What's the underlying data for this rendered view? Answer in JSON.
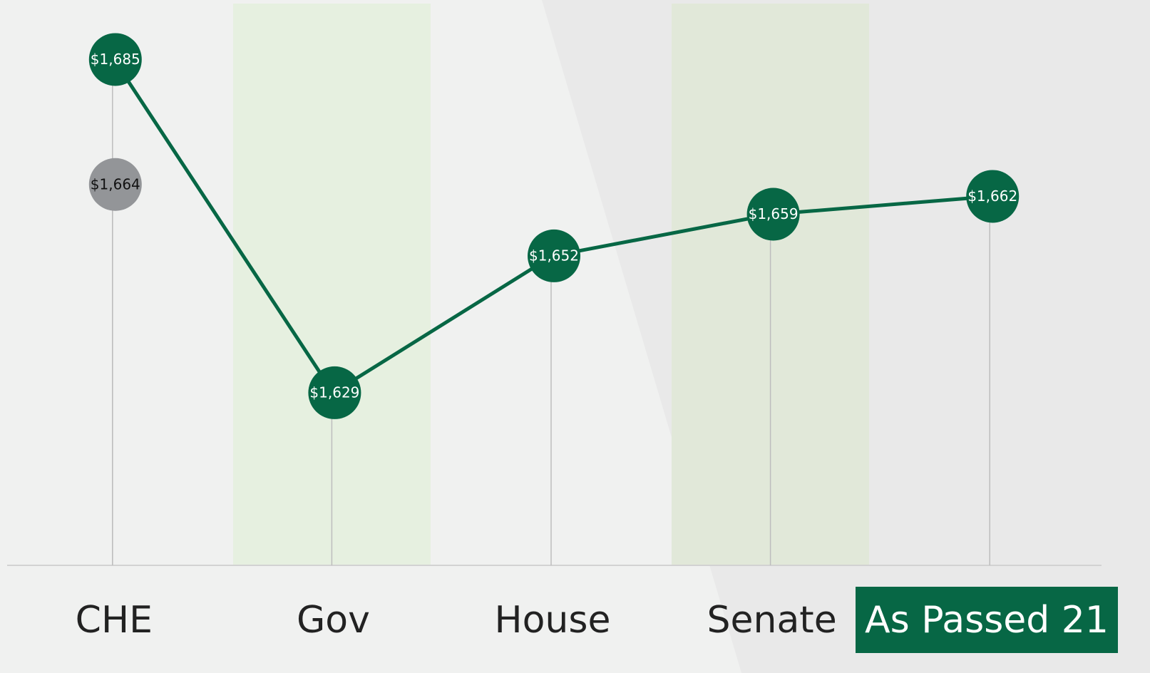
{
  "chart_data": {
    "type": "line",
    "categories": [
      "CHE",
      "Gov",
      "House",
      "Senate",
      "As Passed 21"
    ],
    "series": [
      {
        "color": "#076745",
        "values": [
          1685,
          1629,
          1652,
          1659,
          1662
        ],
        "value_labels": [
          "$1,685",
          "$1,629",
          "$1,652",
          "$1,659",
          "$1,662"
        ]
      },
      {
        "color": "#939598",
        "values": [
          1664,
          null,
          null,
          null,
          null
        ],
        "value_labels": [
          "$1,664",
          null,
          null,
          null,
          null
        ]
      }
    ],
    "ylim": [
      1600,
      1695
    ]
  }
}
